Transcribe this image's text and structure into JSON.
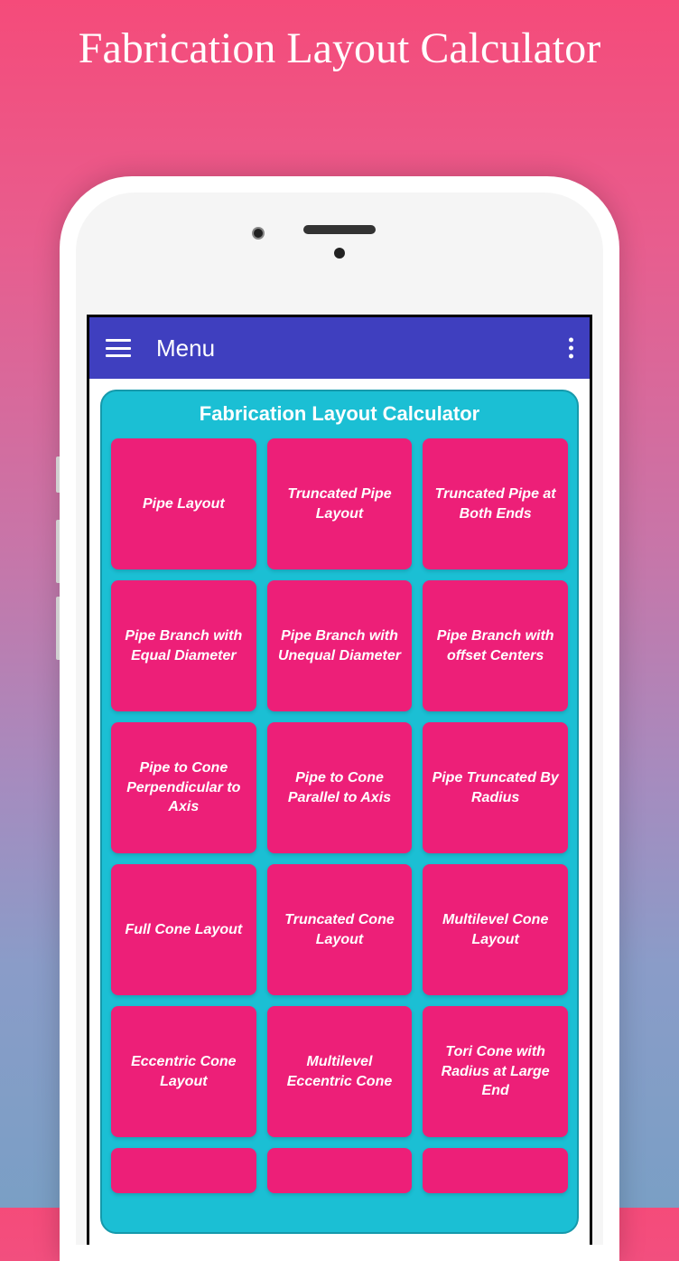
{
  "page": {
    "title": "Fabrication Layout Calculator"
  },
  "colors": {
    "background_gradient_start": "#f54b7a",
    "background_gradient_end": "#7a9fc5",
    "app_bar": "#3f3fbf",
    "panel": "#1bbfd4",
    "panel_border": "#1599ab",
    "tile": "#ed1f78",
    "text_white": "#ffffff"
  },
  "app_bar": {
    "title": "Menu"
  },
  "panel": {
    "title": "Fabrication Layout Calculator"
  },
  "tiles": [
    {
      "label": "Pipe Layout"
    },
    {
      "label": "Truncated Pipe Layout"
    },
    {
      "label": "Truncated Pipe at Both Ends"
    },
    {
      "label": "Pipe Branch with Equal Diameter"
    },
    {
      "label": "Pipe Branch with Unequal Diameter"
    },
    {
      "label": "Pipe Branch with offset Centers"
    },
    {
      "label": "Pipe to Cone Perpendicular to Axis"
    },
    {
      "label": "Pipe to Cone Parallel to Axis"
    },
    {
      "label": "Pipe Truncated By Radius"
    },
    {
      "label": "Full Cone Layout"
    },
    {
      "label": "Truncated Cone Layout"
    },
    {
      "label": "Multilevel Cone Layout"
    },
    {
      "label": "Eccentric Cone Layout"
    },
    {
      "label": "Multilevel Eccentric Cone"
    },
    {
      "label": "Tori Cone with Radius at Large End"
    }
  ]
}
